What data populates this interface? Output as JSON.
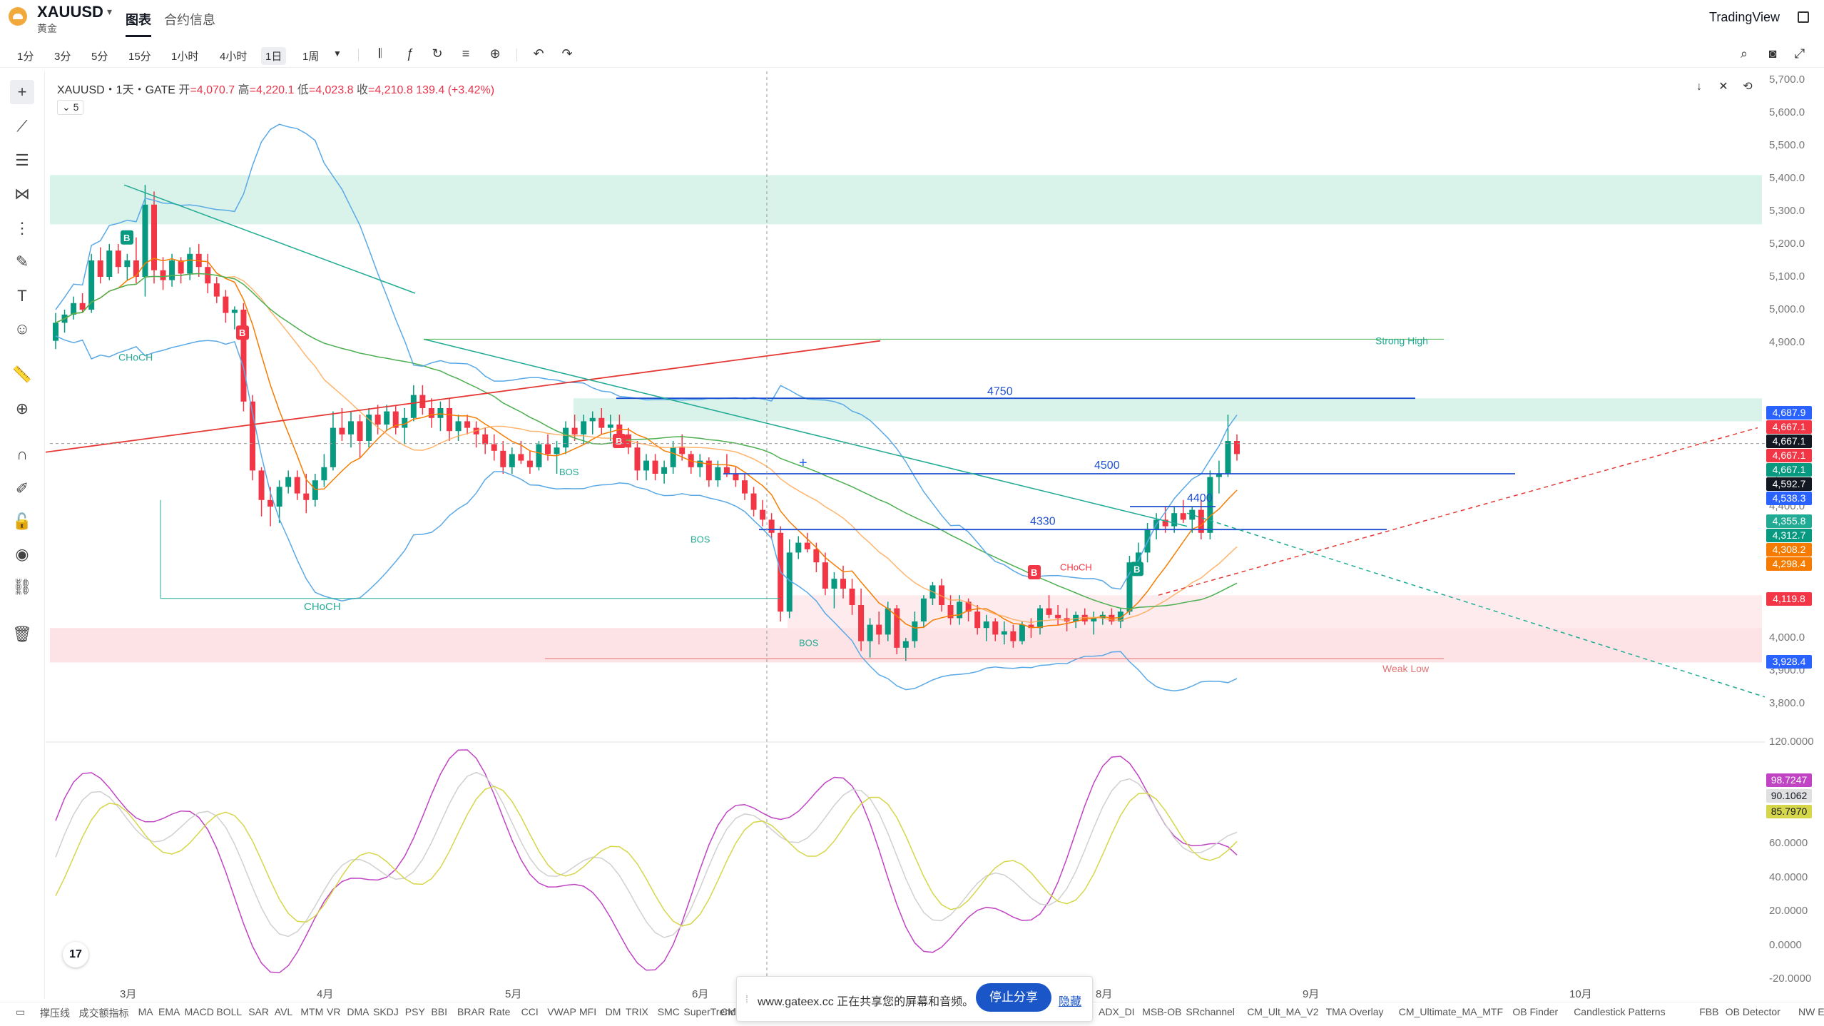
{
  "header": {
    "symbol": "XAUUSD",
    "symbol_sub": "黄金",
    "tabs": [
      "图表",
      "合约信息"
    ],
    "brand": "TradingView"
  },
  "toolbar": {
    "intervals": [
      "1分",
      "3分",
      "5分",
      "15分",
      "1小时",
      "4小时",
      "1日",
      "1周"
    ],
    "active_interval": "1日",
    "icons": [
      "candle-style-icon",
      "indicator-icon",
      "replay-icon",
      "templates-icon",
      "add-icon",
      "undo-icon",
      "redo-icon"
    ],
    "right_icons": [
      "search-icon",
      "camera-icon",
      "fullscreen-icon"
    ]
  },
  "left_tools": [
    "crosshair-icon",
    "trendline-icon",
    "fib-icon",
    "pattern-icon",
    "forecast-icon",
    "brush-icon",
    "text-icon",
    "emoji-icon",
    "ruler-icon",
    "zoom-icon",
    "magnet-icon",
    "lock-pencil-icon",
    "lock-icon",
    "eye-icon",
    "link-icon",
    "trash-icon"
  ],
  "legend": {
    "title": "XAUUSD・1天・GATE",
    "open_label": "开",
    "open": "=4,070.7",
    "high_label": "高",
    "high": "=4,220.1",
    "low_label": "低",
    "low": "=4,023.8",
    "close_label": "收",
    "close": "=4,210.8",
    "change": "139.4 (+3.42%)",
    "collapse_label": "5"
  },
  "chart_data": {
    "type": "candlestick",
    "price_axis_ticks": [
      "5,700.0",
      "5,600.0",
      "5,500.0",
      "5,400.0",
      "5,300.0",
      "5,200.0",
      "5,100.0",
      "5,000.0",
      "4,900.0",
      "4,500.0",
      "4,400.0",
      "4,000.0",
      "3,900.0",
      "3,800.0"
    ],
    "price_badges": [
      {
        "label": "4,687.9",
        "color": "#2962ff"
      },
      {
        "label": "4,667.1",
        "color": "#f23645"
      },
      {
        "label": "4,667.1",
        "color": "#131722"
      },
      {
        "label": "4,667.1",
        "color": "#f23645"
      },
      {
        "label": "4,667.1",
        "color": "#089981"
      },
      {
        "label": "4,592.7",
        "color": "#131722"
      },
      {
        "label": "4,538.3",
        "color": "#2962ff"
      },
      {
        "label": "4,355.8",
        "color": "#22ab94"
      },
      {
        "label": "4,312.7",
        "color": "#089981"
      },
      {
        "label": "4,308.2",
        "color": "#f57c00"
      },
      {
        "label": "4,298.4",
        "color": "#f57c00"
      },
      {
        "label": "4,119.8",
        "color": "#f23645"
      },
      {
        "label": "3,928.4",
        "color": "#2962ff"
      }
    ],
    "oscillator_ticks": [
      "120.0000",
      "60.0000",
      "40.0000",
      "20.0000",
      "0.0000",
      "-20.0000"
    ],
    "oscillator_badges": [
      {
        "label": "98.7247",
        "color": "#c044c4"
      },
      {
        "label": "90.1062",
        "color": "#e0e0e0"
      },
      {
        "label": "85.7970",
        "color": "#d6d64a"
      }
    ],
    "time_ticks": [
      "3月",
      "4月",
      "5月",
      "6月",
      "8月",
      "9月",
      "10月"
    ],
    "level_labels": [
      "4750",
      "4500",
      "4400",
      "4330"
    ],
    "annotations": [
      "Strong High",
      "Weak Low",
      "CHoCH",
      "CHoCH",
      "CHoCH",
      "BOS",
      "BOS",
      "BOS"
    ],
    "signal_labels": [
      "B",
      "B",
      "B",
      "B",
      "B"
    ],
    "candles": [
      [
        4905,
        4990,
        4880,
        4960
      ],
      [
        4960,
        5000,
        4930,
        4985
      ],
      [
        4985,
        5040,
        4970,
        5020
      ],
      [
        5020,
        5050,
        4990,
        5000
      ],
      [
        5000,
        5170,
        4990,
        5150
      ],
      [
        5150,
        5190,
        5080,
        5100
      ],
      [
        5100,
        5200,
        5090,
        5180
      ],
      [
        5180,
        5200,
        5110,
        5130
      ],
      [
        5130,
        5170,
        5090,
        5150
      ],
      [
        5150,
        5220,
        5080,
        5100
      ],
      [
        5100,
        5380,
        5040,
        5320
      ],
      [
        5320,
        5360,
        5080,
        5120
      ],
      [
        5120,
        5160,
        5060,
        5090
      ],
      [
        5090,
        5170,
        5070,
        5150
      ],
      [
        5150,
        5160,
        5080,
        5110
      ],
      [
        5110,
        5190,
        5090,
        5170
      ],
      [
        5170,
        5200,
        5100,
        5130
      ],
      [
        5130,
        5170,
        5050,
        5080
      ],
      [
        5080,
        5100,
        5020,
        5040
      ],
      [
        5040,
        5060,
        4960,
        4990
      ],
      [
        4990,
        5010,
        4940,
        5000
      ],
      [
        5000,
        5020,
        4690,
        4720
      ],
      [
        4720,
        4740,
        4480,
        4510
      ],
      [
        4510,
        4520,
        4370,
        4420
      ],
      [
        4420,
        4460,
        4340,
        4400
      ],
      [
        4400,
        4480,
        4350,
        4460
      ],
      [
        4460,
        4510,
        4440,
        4490
      ],
      [
        4490,
        4510,
        4420,
        4440
      ],
      [
        4440,
        4500,
        4380,
        4420
      ],
      [
        4420,
        4500,
        4400,
        4480
      ],
      [
        4480,
        4560,
        4460,
        4520
      ],
      [
        4520,
        4690,
        4510,
        4640
      ],
      [
        4640,
        4700,
        4600,
        4620
      ],
      [
        4620,
        4690,
        4580,
        4660
      ],
      [
        4660,
        4680,
        4550,
        4600
      ],
      [
        4600,
        4700,
        4580,
        4680
      ],
      [
        4680,
        4710,
        4620,
        4650
      ],
      [
        4650,
        4710,
        4630,
        4690
      ],
      [
        4690,
        4710,
        4620,
        4640
      ],
      [
        4640,
        4700,
        4590,
        4670
      ],
      [
        4670,
        4770,
        4660,
        4740
      ],
      [
        4740,
        4770,
        4680,
        4700
      ],
      [
        4700,
        4730,
        4640,
        4670
      ],
      [
        4670,
        4720,
        4630,
        4700
      ],
      [
        4700,
        4730,
        4600,
        4630
      ],
      [
        4630,
        4680,
        4600,
        4660
      ],
      [
        4660,
        4680,
        4620,
        4640
      ],
      [
        4640,
        4660,
        4580,
        4620
      ],
      [
        4620,
        4640,
        4560,
        4590
      ],
      [
        4590,
        4620,
        4540,
        4570
      ],
      [
        4570,
        4600,
        4500,
        4520
      ],
      [
        4520,
        4580,
        4500,
        4560
      ],
      [
        4560,
        4600,
        4530,
        4540
      ],
      [
        4540,
        4570,
        4500,
        4520
      ],
      [
        4520,
        4600,
        4510,
        4590
      ],
      [
        4590,
        4620,
        4540,
        4560
      ],
      [
        4560,
        4600,
        4500,
        4580
      ],
      [
        4580,
        4660,
        4560,
        4640
      ],
      [
        4640,
        4680,
        4600,
        4620
      ],
      [
        4620,
        4680,
        4590,
        4660
      ],
      [
        4660,
        4690,
        4620,
        4670
      ],
      [
        4670,
        4700,
        4620,
        4640
      ],
      [
        4640,
        4680,
        4600,
        4650
      ],
      [
        4650,
        4680,
        4590,
        4620
      ],
      [
        4620,
        4640,
        4560,
        4580
      ],
      [
        4580,
        4600,
        4480,
        4510
      ],
      [
        4510,
        4560,
        4480,
        4540
      ],
      [
        4540,
        4560,
        4480,
        4500
      ],
      [
        4500,
        4540,
        4470,
        4520
      ],
      [
        4520,
        4600,
        4500,
        4580
      ],
      [
        4580,
        4620,
        4540,
        4560
      ],
      [
        4560,
        4570,
        4500,
        4520
      ],
      [
        4520,
        4560,
        4490,
        4540
      ],
      [
        4540,
        4550,
        4460,
        4480
      ],
      [
        4480,
        4540,
        4460,
        4520
      ],
      [
        4520,
        4560,
        4490,
        4500
      ],
      [
        4500,
        4520,
        4460,
        4480
      ],
      [
        4480,
        4500,
        4420,
        4440
      ],
      [
        4440,
        4460,
        4370,
        4390
      ],
      [
        4390,
        4420,
        4340,
        4360
      ],
      [
        4360,
        4380,
        4300,
        4320
      ],
      [
        4320,
        4340,
        4050,
        4080
      ],
      [
        4080,
        4300,
        4060,
        4260
      ],
      [
        4260,
        4310,
        4240,
        4290
      ],
      [
        4290,
        4320,
        4260,
        4270
      ],
      [
        4270,
        4290,
        4200,
        4230
      ],
      [
        4230,
        4260,
        4130,
        4150
      ],
      [
        4150,
        4200,
        4090,
        4180
      ],
      [
        4180,
        4220,
        4120,
        4150
      ],
      [
        4150,
        4180,
        4070,
        4100
      ],
      [
        4100,
        4150,
        3960,
        3990
      ],
      [
        3990,
        4060,
        3940,
        4040
      ],
      [
        4040,
        4080,
        3980,
        4010
      ],
      [
        4010,
        4110,
        3990,
        4090
      ],
      [
        4090,
        4100,
        3950,
        3970
      ],
      [
        3970,
        4000,
        3930,
        3990
      ],
      [
        3990,
        4080,
        3970,
        4050
      ],
      [
        4050,
        4130,
        4030,
        4120
      ],
      [
        4120,
        4170,
        4100,
        4160
      ],
      [
        4160,
        4180,
        4080,
        4100
      ],
      [
        4100,
        4130,
        4040,
        4060
      ],
      [
        4060,
        4130,
        4040,
        4110
      ],
      [
        4110,
        4120,
        4050,
        4080
      ],
      [
        4080,
        4100,
        4010,
        4030
      ],
      [
        4030,
        4070,
        3990,
        4050
      ],
      [
        4050,
        4060,
        3990,
        4010
      ],
      [
        4010,
        4050,
        3980,
        4020
      ],
      [
        4020,
        4040,
        3970,
        3990
      ],
      [
        3990,
        4050,
        3980,
        4040
      ],
      [
        4040,
        4060,
        4000,
        4030
      ],
      [
        4030,
        4100,
        4010,
        4090
      ],
      [
        4090,
        4130,
        4060,
        4070
      ],
      [
        4070,
        4100,
        4040,
        4060
      ],
      [
        4060,
        4090,
        4020,
        4050
      ],
      [
        4050,
        4080,
        4030,
        4070
      ],
      [
        4070,
        4090,
        4040,
        4050
      ],
      [
        4050,
        4080,
        4010,
        4060
      ],
      [
        4060,
        4080,
        4040,
        4070
      ],
      [
        4070,
        4090,
        4040,
        4050
      ],
      [
        4050,
        4090,
        4030,
        4080
      ],
      [
        4080,
        4250,
        4070,
        4230
      ],
      [
        4230,
        4290,
        4200,
        4260
      ],
      [
        4260,
        4350,
        4230,
        4330
      ],
      [
        4330,
        4380,
        4300,
        4360
      ],
      [
        4360,
        4400,
        4320,
        4340
      ],
      [
        4340,
        4400,
        4320,
        4380
      ],
      [
        4380,
        4420,
        4350,
        4360
      ],
      [
        4360,
        4400,
        4320,
        4390
      ],
      [
        4390,
        4420,
        4300,
        4320
      ],
      [
        4320,
        4510,
        4300,
        4490
      ],
      [
        4490,
        4540,
        4440,
        4500
      ],
      [
        4500,
        4680,
        4490,
        4600
      ],
      [
        4600,
        4620,
        4540,
        4560
      ]
    ]
  },
  "share_banner": {
    "text": "www.gateex.cc 正在共享您的屏幕和音频。",
    "stop_label": "停止分享",
    "hide_label": "隐藏"
  },
  "indicators": [
    "撑压线",
    "成交额指标",
    "MA",
    "EMA",
    "MACD",
    "BOLL",
    "SAR",
    "AVL",
    "MTM",
    "VR",
    "DMA",
    "SKDJ",
    "PSY",
    "BBI",
    "BRAR",
    "Rate",
    "CCI",
    "VWAP",
    "MFI",
    "DM",
    "TRIX",
    "SMC",
    "SuperTrendPro",
    "CM",
    "ADX_DI",
    "MSB-OB",
    "SRchannel",
    "CM_Ult_MA_V2",
    "TMA Overlay",
    "CM_Ultimate_MA_MTF",
    "OB Finder",
    "Candlestick Patterns",
    "FBB",
    "OB Detector",
    "NW Envelo..."
  ]
}
